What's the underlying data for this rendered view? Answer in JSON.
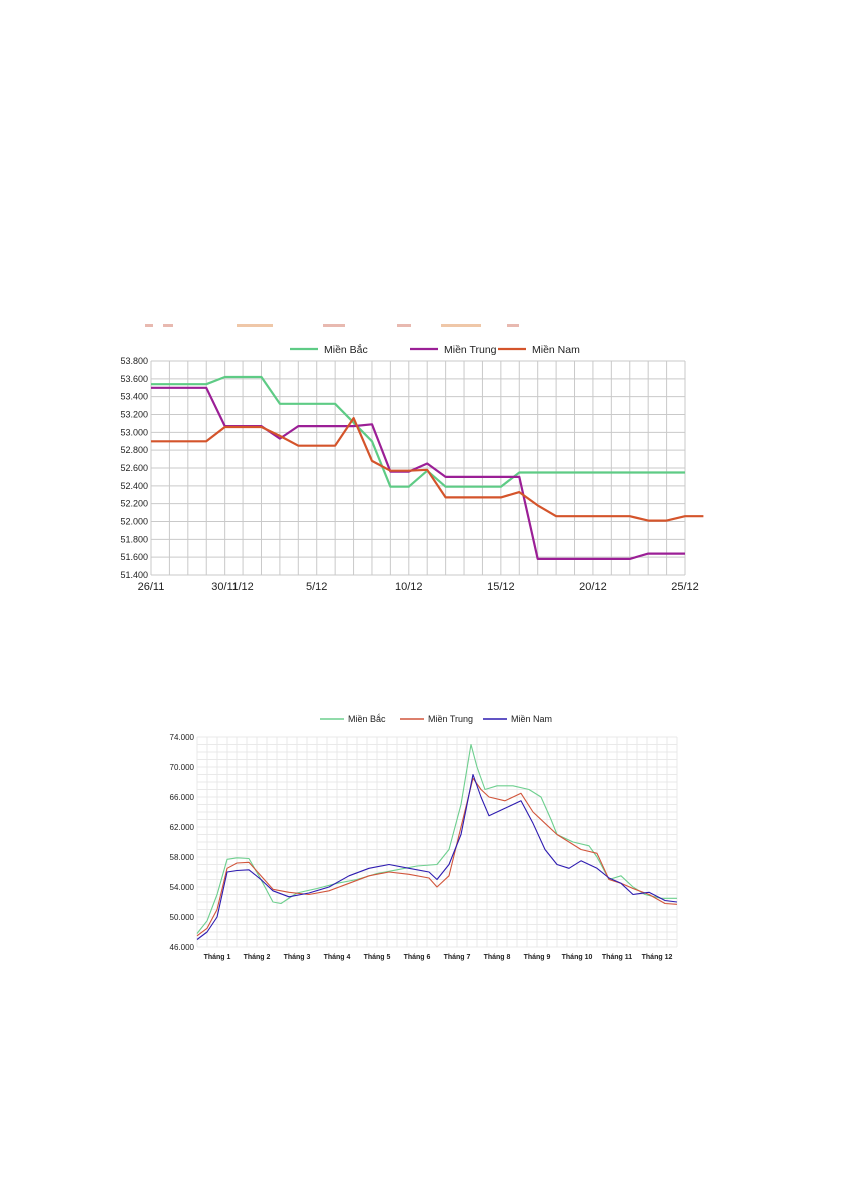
{
  "chart_data": [
    {
      "type": "line",
      "title": "",
      "xlabel": "",
      "ylabel": "",
      "ylim": [
        51400,
        53800
      ],
      "y_ticks": [
        "53.800",
        "53.600",
        "53.400",
        "53.200",
        "53.000",
        "52.800",
        "52.600",
        "52.400",
        "52.200",
        "52.000",
        "51.800",
        "51.600",
        "51.400"
      ],
      "x_ticks": [
        "26/11",
        "30/11",
        "1/12",
        "5/12",
        "10/12",
        "15/12",
        "20/12",
        "25/12"
      ],
      "legend_position": "top-center",
      "grid": true,
      "series": [
        {
          "name": "Miền Bắc",
          "color": "#5ecb85",
          "points": [
            [
              "26/11",
              53540
            ],
            [
              "29/11",
              53540
            ],
            [
              "30/11",
              53620
            ],
            [
              "2/12",
              53620
            ],
            [
              "3/12",
              53320
            ],
            [
              "6/12",
              53320
            ],
            [
              "8/12",
              52900
            ],
            [
              "9/12",
              52390
            ],
            [
              "10/12",
              52390
            ],
            [
              "11/12",
              52570
            ],
            [
              "12/12",
              52390
            ],
            [
              "15/12",
              52390
            ],
            [
              "16/12",
              52550
            ],
            [
              "25/12",
              52550
            ]
          ]
        },
        {
          "name": "Miền Trung",
          "color": "#9b1f96",
          "points": [
            [
              "26/11",
              53500
            ],
            [
              "29/11",
              53500
            ],
            [
              "30/11",
              53070
            ],
            [
              "2/12",
              53070
            ],
            [
              "3/12",
              52930
            ],
            [
              "4/12",
              53070
            ],
            [
              "7/12",
              53070
            ],
            [
              "8/12",
              53090
            ],
            [
              "9/12",
              52560
            ],
            [
              "10/12",
              52560
            ],
            [
              "11/12",
              52650
            ],
            [
              "12/12",
              52500
            ],
            [
              "16/12",
              52500
            ],
            [
              "17/12",
              51580
            ],
            [
              "22/12",
              51580
            ],
            [
              "23/12",
              51640
            ],
            [
              "25/12",
              51640
            ]
          ]
        },
        {
          "name": "Miền Nam",
          "color": "#d4542b",
          "points": [
            [
              "26/11",
              52900
            ],
            [
              "29/11",
              52900
            ],
            [
              "30/11",
              53060
            ],
            [
              "2/12",
              53060
            ],
            [
              "3/12",
              52960
            ],
            [
              "4/12",
              52850
            ],
            [
              "6/12",
              52850
            ],
            [
              "7/12",
              53160
            ],
            [
              "8/12",
              52680
            ],
            [
              "9/12",
              52570
            ],
            [
              "10/12",
              52570
            ],
            [
              "11/12",
              52580
            ],
            [
              "12/12",
              52270
            ],
            [
              "15/12",
              52270
            ],
            [
              "16/12",
              52330
            ],
            [
              "17/12",
              52180
            ],
            [
              "18/12",
              52060
            ],
            [
              "22/12",
              52060
            ],
            [
              "23/12",
              52010
            ],
            [
              "24/12",
              52010
            ],
            [
              "25/12",
              52060
            ],
            [
              "26/12",
              52060
            ]
          ]
        }
      ]
    },
    {
      "type": "line",
      "title": "",
      "xlabel": "",
      "ylabel": "",
      "ylim": [
        46000,
        74000
      ],
      "y_ticks": [
        "74.000",
        "70.000",
        "66.000",
        "62.000",
        "58.000",
        "54.000",
        "50.000",
        "46.000"
      ],
      "x_ticks": [
        "Tháng 1",
        "Tháng 2",
        "Tháng 3",
        "Tháng 4",
        "Tháng 5",
        "Tháng 6",
        "Tháng 7",
        "Tháng 8",
        "Tháng 9",
        "Tháng 10",
        "Tháng 11",
        "Tháng 12"
      ],
      "legend_position": "top-center",
      "grid": true,
      "series": [
        {
          "name": "Miền Bắc",
          "color": "#6dcf8e",
          "points": [
            [
              0.0,
              47800
            ],
            [
              0.25,
              49500
            ],
            [
              0.5,
              53000
            ],
            [
              0.75,
              57700
            ],
            [
              1.0,
              57900
            ],
            [
              1.3,
              57800
            ],
            [
              1.6,
              55000
            ],
            [
              1.9,
              52000
            ],
            [
              2.1,
              51800
            ],
            [
              2.5,
              53200
            ],
            [
              3.0,
              53800
            ],
            [
              3.5,
              54500
            ],
            [
              4.0,
              55000
            ],
            [
              4.5,
              55800
            ],
            [
              5.0,
              56300
            ],
            [
              5.5,
              56800
            ],
            [
              6.0,
              57000
            ],
            [
              6.3,
              59000
            ],
            [
              6.6,
              65000
            ],
            [
              6.85,
              73000
            ],
            [
              7.0,
              70000
            ],
            [
              7.2,
              67000
            ],
            [
              7.5,
              67500
            ],
            [
              7.9,
              67500
            ],
            [
              8.3,
              67000
            ],
            [
              8.6,
              66000
            ],
            [
              8.85,
              63000
            ],
            [
              9.0,
              61000
            ],
            [
              9.4,
              60000
            ],
            [
              9.8,
              59500
            ],
            [
              10.0,
              58000
            ],
            [
              10.3,
              55000
            ],
            [
              10.6,
              55500
            ],
            [
              10.9,
              54000
            ],
            [
              11.2,
              53000
            ],
            [
              11.6,
              52500
            ],
            [
              12.0,
              52500
            ]
          ]
        },
        {
          "name": "Miền Trung",
          "color": "#d1553b",
          "points": [
            [
              0.0,
              47500
            ],
            [
              0.25,
              48500
            ],
            [
              0.5,
              51000
            ],
            [
              0.75,
              56500
            ],
            [
              1.0,
              57200
            ],
            [
              1.3,
              57300
            ],
            [
              1.6,
              55500
            ],
            [
              1.9,
              53700
            ],
            [
              2.3,
              53300
            ],
            [
              2.8,
              53000
            ],
            [
              3.3,
              53500
            ],
            [
              3.8,
              54500
            ],
            [
              4.3,
              55500
            ],
            [
              4.8,
              56000
            ],
            [
              5.3,
              55700
            ],
            [
              5.8,
              55200
            ],
            [
              6.0,
              54000
            ],
            [
              6.3,
              55500
            ],
            [
              6.6,
              62000
            ],
            [
              6.9,
              68500
            ],
            [
              7.1,
              67000
            ],
            [
              7.3,
              66000
            ],
            [
              7.7,
              65500
            ],
            [
              8.1,
              66500
            ],
            [
              8.4,
              64000
            ],
            [
              8.7,
              62500
            ],
            [
              9.0,
              61000
            ],
            [
              9.3,
              60000
            ],
            [
              9.6,
              59000
            ],
            [
              10.0,
              58500
            ],
            [
              10.3,
              55000
            ],
            [
              10.6,
              54500
            ],
            [
              10.9,
              53800
            ],
            [
              11.3,
              53000
            ],
            [
              11.7,
              51800
            ],
            [
              12.0,
              51700
            ]
          ]
        },
        {
          "name": "Miền Nam",
          "color": "#2d1bb0",
          "points": [
            [
              0.0,
              47000
            ],
            [
              0.25,
              48000
            ],
            [
              0.5,
              50000
            ],
            [
              0.75,
              56000
            ],
            [
              1.0,
              56200
            ],
            [
              1.3,
              56300
            ],
            [
              1.6,
              55000
            ],
            [
              1.9,
              53500
            ],
            [
              2.3,
              52700
            ],
            [
              2.8,
              53200
            ],
            [
              3.3,
              54000
            ],
            [
              3.8,
              55500
            ],
            [
              4.3,
              56500
            ],
            [
              4.8,
              57000
            ],
            [
              5.3,
              56500
            ],
            [
              5.8,
              56000
            ],
            [
              6.0,
              55000
            ],
            [
              6.3,
              57000
            ],
            [
              6.6,
              61000
            ],
            [
              6.9,
              69000
            ],
            [
              7.1,
              66000
            ],
            [
              7.3,
              63500
            ],
            [
              7.7,
              64500
            ],
            [
              8.1,
              65500
            ],
            [
              8.4,
              62500
            ],
            [
              8.7,
              59000
            ],
            [
              9.0,
              57000
            ],
            [
              9.3,
              56500
            ],
            [
              9.6,
              57500
            ],
            [
              10.0,
              56500
            ],
            [
              10.3,
              55200
            ],
            [
              10.6,
              54500
            ],
            [
              10.9,
              53000
            ],
            [
              11.3,
              53300
            ],
            [
              11.7,
              52200
            ],
            [
              12.0,
              52000
            ]
          ]
        }
      ]
    }
  ]
}
